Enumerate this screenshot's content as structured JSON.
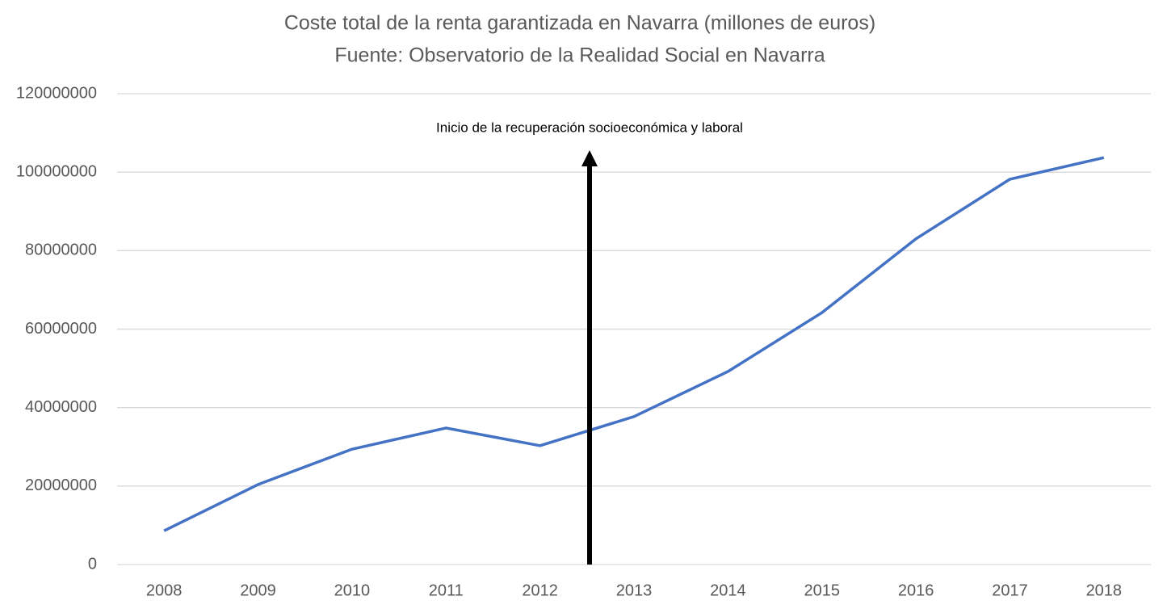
{
  "chart_data": {
    "type": "line",
    "title": "Coste total de la renta garantizada en Navarra (millones de euros)",
    "subtitle": "Fuente: Observatorio de la Realidad Social en Navarra",
    "annotation": "Inicio de la recuperación socioeconómica y laboral",
    "categories": [
      "2008",
      "2009",
      "2010",
      "2011",
      "2012",
      "2013",
      "2014",
      "2015",
      "2016",
      "2017",
      "2018"
    ],
    "values": [
      8600000,
      20400000,
      29400000,
      34800000,
      30300000,
      37700000,
      49200000,
      64200000,
      83000000,
      98200000,
      103700000
    ],
    "color": "#4472c4",
    "ylim": [
      0,
      120000000
    ],
    "yticks": [
      0,
      20000000,
      40000000,
      60000000,
      80000000,
      100000000,
      120000000
    ],
    "grid": true
  }
}
